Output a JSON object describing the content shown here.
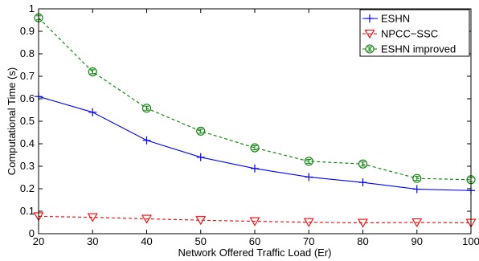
{
  "chart_data": {
    "type": "line",
    "xlabel": "Network Offered Traffic Load (Er)",
    "ylabel": "Computational Time (s)",
    "xlim": [
      20,
      100
    ],
    "ylim": [
      0,
      1
    ],
    "xticks": [
      20,
      30,
      40,
      50,
      60,
      70,
      80,
      90,
      100
    ],
    "yticks": [
      0,
      0.1,
      0.2,
      0.3,
      0.4,
      0.5,
      0.6,
      0.7,
      0.8,
      0.9,
      1
    ],
    "ytick_labels": [
      "0",
      "0.1",
      "0.2",
      "0.3",
      "0.4",
      "0.5",
      "0.6",
      "0.7",
      "0.8",
      "0.9",
      "1"
    ],
    "grid": false,
    "legend_position": "top-right",
    "x": [
      20,
      30,
      40,
      50,
      60,
      70,
      80,
      90,
      100
    ],
    "series": [
      {
        "name": "ESHN",
        "values": [
          0.61,
          0.54,
          0.415,
          0.34,
          0.29,
          0.252,
          0.228,
          0.198,
          0.192
        ],
        "color": "#0000ff",
        "line_style": "solid",
        "marker": "plus"
      },
      {
        "name": "NPCC−SSC",
        "values": [
          0.077,
          0.073,
          0.066,
          0.06,
          0.055,
          0.051,
          0.048,
          0.05,
          0.048
        ],
        "color": "#ff0000",
        "line_style": "dashed",
        "marker": "triangle-down"
      },
      {
        "name": "ESHN improved",
        "values": [
          0.96,
          0.72,
          0.558,
          0.456,
          0.382,
          0.322,
          0.31,
          0.246,
          0.24
        ],
        "color": "#007f00",
        "line_style": "dashed",
        "marker": "circle"
      }
    ]
  }
}
